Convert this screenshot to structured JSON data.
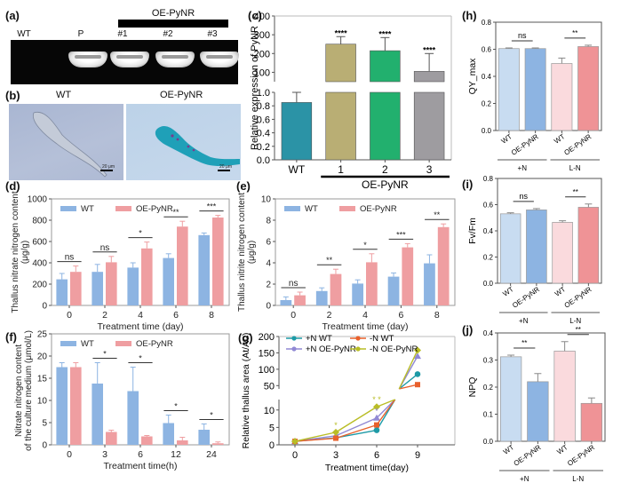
{
  "panels": {
    "a": {
      "label": "(a)",
      "group_label": "OE-PyNR",
      "lanes": [
        "WT",
        "P",
        "#1",
        "#2",
        "#3"
      ],
      "bands_present": [
        false,
        true,
        true,
        true,
        true
      ]
    },
    "b": {
      "label": "(b)",
      "images": [
        {
          "title": "WT",
          "scale_bar": "20 μm"
        },
        {
          "title": "OE-PyNR",
          "scale_bar": "20 μm"
        }
      ]
    }
  },
  "chart_data": [
    {
      "id": "c",
      "label": "(c)",
      "type": "bar",
      "title": "",
      "ylabel": "Relative expression of PyNR",
      "categories": [
        "WT",
        "1",
        "2",
        "3"
      ],
      "group_label": "OE-PyNR",
      "values": [
        0.85,
        250,
        215,
        105
      ],
      "errors": [
        0.15,
        40,
        70,
        95
      ],
      "colors": [
        "#2b93a6",
        "#b9ae74",
        "#22b06e",
        "#9e9ca0"
      ],
      "significance": [
        "",
        "****",
        "****",
        "****"
      ],
      "y_axis_broken": true,
      "ylim_lower": [
        0,
        1.0
      ],
      "ylim_upper": [
        50,
        400
      ],
      "yticks_lower": [
        "0.0",
        "0.2",
        "0.4",
        "0.6",
        "0.8",
        "1.0"
      ],
      "yticks_upper": [
        "100",
        "200",
        "300",
        "400"
      ]
    },
    {
      "id": "d",
      "label": "(d)",
      "type": "bar",
      "xlabel": "Treatment time (day)",
      "ylabel": "Thallus nitrate nitrogen content (μg/g)",
      "categories": [
        "0",
        "2",
        "4",
        "6",
        "8"
      ],
      "ylim": [
        0,
        1000
      ],
      "yticks": [
        "0",
        "200",
        "400",
        "600",
        "800",
        "1000"
      ],
      "legend": "top-left",
      "series": [
        {
          "name": "WT",
          "color": "#8db4e2",
          "values": [
            245,
            315,
            355,
            445,
            660
          ],
          "errors": [
            55,
            70,
            45,
            40,
            20
          ]
        },
        {
          "name": "OE-PyNR",
          "color": "#ef9ea1",
          "values": [
            315,
            405,
            535,
            740,
            825
          ],
          "errors": [
            55,
            55,
            60,
            50,
            20
          ]
        }
      ],
      "significance": [
        "ns",
        "ns",
        "*",
        "**",
        "***"
      ]
    },
    {
      "id": "e",
      "label": "(e)",
      "type": "bar",
      "xlabel": "Treatment time (day)",
      "ylabel": "Thallus nitrite nitrogen content (μg/g)",
      "categories": [
        "0",
        "2",
        "4",
        "6",
        "8"
      ],
      "ylim": [
        0,
        10
      ],
      "yticks": [
        "0",
        "2",
        "4",
        "6",
        "8",
        "10"
      ],
      "legend": "top-left",
      "series": [
        {
          "name": "WT",
          "color": "#8db4e2",
          "values": [
            0.5,
            1.35,
            2.05,
            2.7,
            3.95
          ],
          "errors": [
            0.3,
            0.3,
            0.35,
            0.35,
            0.8
          ]
        },
        {
          "name": "OE-PyNR",
          "color": "#ef9ea1",
          "values": [
            0.95,
            2.95,
            4.05,
            5.45,
            7.35
          ],
          "errors": [
            0.3,
            0.45,
            0.8,
            0.35,
            0.3
          ]
        }
      ],
      "significance": [
        "ns",
        "**",
        "*",
        "***",
        "**"
      ]
    },
    {
      "id": "f",
      "label": "(f)",
      "type": "bar",
      "xlabel": "Treatment time(h)",
      "ylabel": "Nitrate nitrogen content of the culture medium (μmol/L)",
      "categories": [
        "0",
        "3",
        "6",
        "12",
        "24"
      ],
      "ylim": [
        0,
        25
      ],
      "yticks": [
        "0",
        "5",
        "10",
        "15",
        "20",
        "25"
      ],
      "legend": "top-left",
      "series": [
        {
          "name": "WT",
          "color": "#8db4e2",
          "values": [
            17.5,
            13.8,
            12.1,
            4.9,
            3.4
          ],
          "errors": [
            1.0,
            4.7,
            5.4,
            1.8,
            1.3
          ]
        },
        {
          "name": "OE-PyNR",
          "color": "#ef9ea1",
          "values": [
            17.5,
            2.9,
            1.9,
            1.0,
            0.35
          ],
          "errors": [
            1.0,
            0.4,
            0.2,
            0.7,
            0.3
          ]
        }
      ],
      "significance": [
        "",
        "*",
        "*",
        "*",
        "*"
      ]
    },
    {
      "id": "g",
      "label": "(g)",
      "type": "line",
      "xlabel": "Treatment time(day)",
      "ylabel": "Relative thallus area (At/A0)",
      "x": [
        0,
        3,
        6,
        9
      ],
      "y_axis_broken": true,
      "ylim_lower": [
        0,
        13
      ],
      "ylim_upper": [
        40,
        200
      ],
      "yticks_lower": [
        "0",
        "5",
        "10"
      ],
      "yticks_upper": [
        "50",
        "100",
        "150",
        "200"
      ],
      "legend": "top-left",
      "series": [
        {
          "name": "+N WT",
          "color": "#1d9aa6",
          "marker": "circle",
          "values": [
            1,
            2.0,
            4.2,
            85
          ]
        },
        {
          "name": "+N OE-PyNR",
          "color": "#9189d4",
          "marker": "triangle",
          "values": [
            1,
            2.6,
            7.7,
            140
          ]
        },
        {
          "name": "-N  WT",
          "color": "#e8602c",
          "marker": "square",
          "values": [
            1,
            1.9,
            5.7,
            53
          ]
        },
        {
          "name": "-N OE-PyNR",
          "color": "#b9bd26",
          "marker": "diamond",
          "values": [
            1,
            3.6,
            10.9,
            158
          ]
        }
      ],
      "annotations": [
        "*",
        "* *",
        "*"
      ]
    },
    {
      "id": "h",
      "label": "(h)",
      "type": "bar",
      "ylabel": "QY_max",
      "categories": [
        "WT",
        "OE-PyNR",
        "WT",
        "OE-PyNR"
      ],
      "groups": [
        "+N",
        "L-N"
      ],
      "ylim": [
        0,
        0.8
      ],
      "yticks": [
        "0.0",
        "0.2",
        "0.4",
        "0.6",
        "0.8"
      ],
      "values": [
        0.605,
        0.605,
        0.495,
        0.62
      ],
      "errors": [
        0.005,
        0.005,
        0.04,
        0.01
      ],
      "colors": [
        "#c8dcf1",
        "#8db4e2",
        "#fadadd",
        "#ef9396"
      ],
      "significance": [
        "ns",
        "**"
      ]
    },
    {
      "id": "i",
      "label": "(i)",
      "type": "bar",
      "ylabel": "Fv/Fm",
      "categories": [
        "WT",
        "OE-PyNR",
        "WT",
        "OE-PyNR"
      ],
      "groups": [
        "+N",
        "L-N"
      ],
      "ylim": [
        0,
        0.8
      ],
      "yticks": [
        "0.0",
        "0.2",
        "0.4",
        "0.6",
        "0.8"
      ],
      "values": [
        0.53,
        0.56,
        0.465,
        0.58
      ],
      "errors": [
        0.008,
        0.01,
        0.012,
        0.025
      ],
      "colors": [
        "#c8dcf1",
        "#8db4e2",
        "#fadadd",
        "#ef9396"
      ],
      "significance": [
        "ns",
        "**"
      ]
    },
    {
      "id": "j",
      "label": "(j)",
      "type": "bar",
      "ylabel": "NPQ",
      "categories": [
        "WT",
        "OE-PyNR",
        "WT",
        "OE-PyNR"
      ],
      "groups": [
        "+N",
        "L-N"
      ],
      "ylim": [
        0,
        0.4
      ],
      "yticks": [
        "0.0",
        "0.1",
        "0.2",
        "0.3",
        "0.4"
      ],
      "values": [
        0.312,
        0.22,
        0.333,
        0.14
      ],
      "errors": [
        0.006,
        0.03,
        0.035,
        0.02
      ],
      "colors": [
        "#c8dcf1",
        "#8db4e2",
        "#fadadd",
        "#ef9396"
      ],
      "significance": [
        "**",
        "**"
      ]
    }
  ]
}
